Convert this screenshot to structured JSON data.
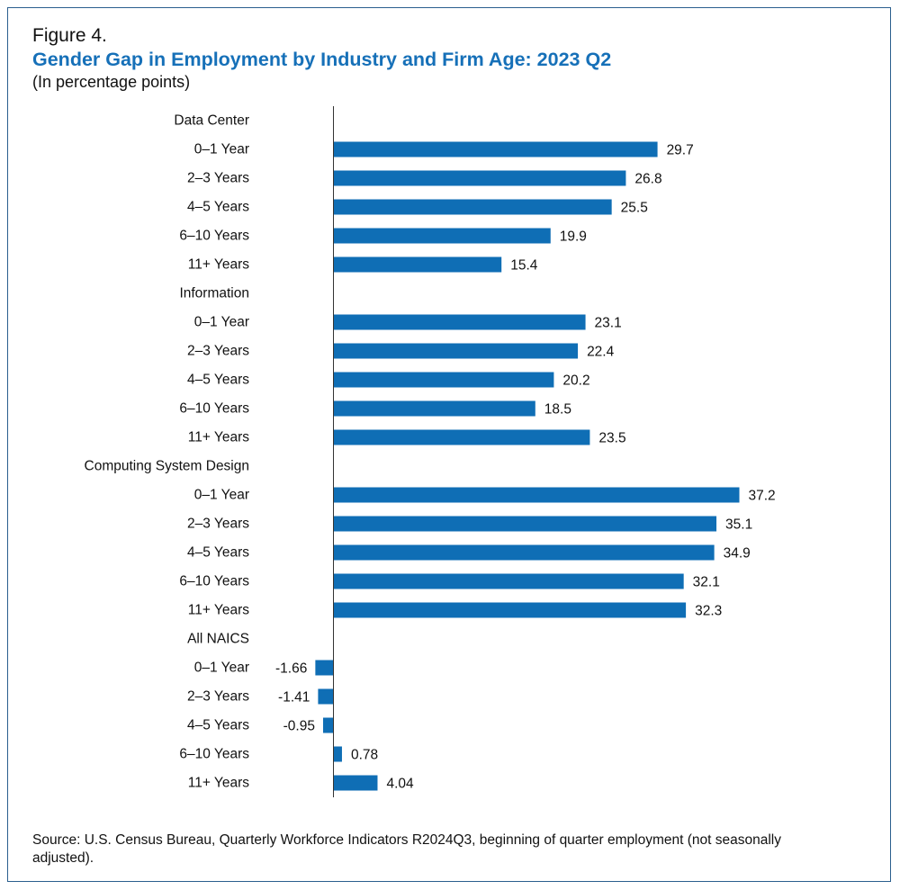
{
  "figure": {
    "label": "Figure 4.",
    "title": "Gender Gap in Employment by Industry and Firm Age: 2023 Q2",
    "subtitle": "(In percentage points)",
    "source": "Source: U.S. Census Bureau, Quarterly Workforce Indicators R2024Q3, beginning of quarter employment (not seasonally adjusted)."
  },
  "colors": {
    "bar": "#0f6eb5",
    "axis": "#333333",
    "text": "#111111"
  },
  "chart_data": {
    "type": "bar",
    "orientation": "horizontal",
    "title": "Gender Gap in Employment by Industry and Firm Age: 2023 Q2",
    "xlabel": "(In percentage points)",
    "ylabel": "",
    "xlim": [
      -2,
      40
    ],
    "grid": false,
    "groups": [
      {
        "name": "Data Center",
        "categories": [
          "0–1 Year",
          "2–3 Years",
          "4–5 Years",
          "6–10 Years",
          "11+ Years"
        ],
        "values": [
          29.7,
          26.8,
          25.5,
          19.9,
          15.4
        ],
        "labels": [
          "29.7",
          "26.8",
          "25.5",
          "19.9",
          "15.4"
        ]
      },
      {
        "name": "Information",
        "categories": [
          "0–1 Year",
          "2–3 Years",
          "4–5 Years",
          "6–10 Years",
          "11+ Years"
        ],
        "values": [
          23.1,
          22.4,
          20.2,
          18.5,
          23.5
        ],
        "labels": [
          "23.1",
          "22.4",
          "20.2",
          "18.5",
          "23.5"
        ]
      },
      {
        "name": "Computing System Design",
        "categories": [
          "0–1 Year",
          "2–3 Years",
          "4–5 Years",
          "6–10 Years",
          "11+ Years"
        ],
        "values": [
          37.2,
          35.1,
          34.9,
          32.1,
          32.3
        ],
        "labels": [
          "37.2",
          "35.1",
          "34.9",
          "32.1",
          "32.3"
        ]
      },
      {
        "name": "All NAICS",
        "categories": [
          "0–1 Year",
          "2–3 Years",
          "4–5 Years",
          "6–10 Years",
          "11+ Years"
        ],
        "values": [
          -1.66,
          -1.41,
          -0.95,
          0.78,
          4.04
        ],
        "labels": [
          "-1.66",
          "-1.41",
          "-0.95",
          "0.78",
          "4.04"
        ]
      }
    ]
  }
}
